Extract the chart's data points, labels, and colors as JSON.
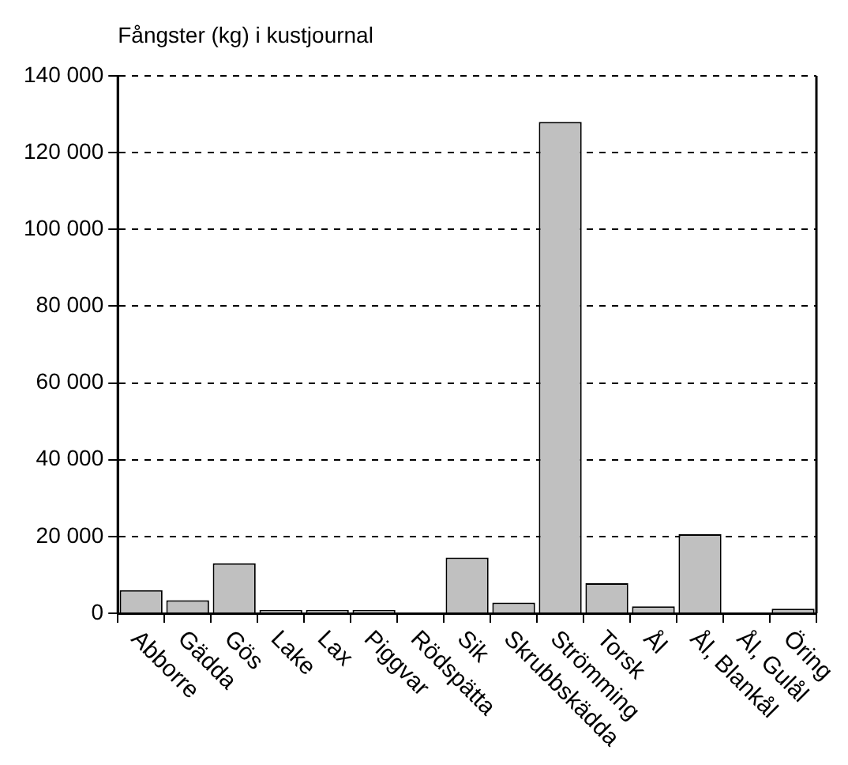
{
  "chart_data": {
    "type": "bar",
    "title": "Fångster (kg) i kustjournal",
    "categories": [
      "Abborre",
      "Gädda",
      "Gös",
      "Lake",
      "Lax",
      "Piggvar",
      "Rödspätta",
      "Sik",
      "Skrubbskädda",
      "Strömming",
      "Torsk",
      "Ål",
      "Ål, Blankål",
      "Ål, Gulål",
      "Öring"
    ],
    "values": [
      6000,
      3400,
      13000,
      800,
      800,
      800,
      0,
      14500,
      2800,
      128000,
      7800,
      1800,
      20600,
      0,
      1200
    ],
    "color": "#c0c0c0",
    "ylim": [
      0,
      140000
    ],
    "yticks": [
      {
        "value": 0,
        "label": "0"
      },
      {
        "value": 20000,
        "label": "20 000"
      },
      {
        "value": 40000,
        "label": "40 000"
      },
      {
        "value": 60000,
        "label": "60 000"
      },
      {
        "value": 80000,
        "label": "80 000"
      },
      {
        "value": 100000,
        "label": "100 000"
      },
      {
        "value": 120000,
        "label": "120 000"
      },
      {
        "value": 140000,
        "label": "140 000"
      }
    ],
    "grid": "y",
    "legend": false
  }
}
